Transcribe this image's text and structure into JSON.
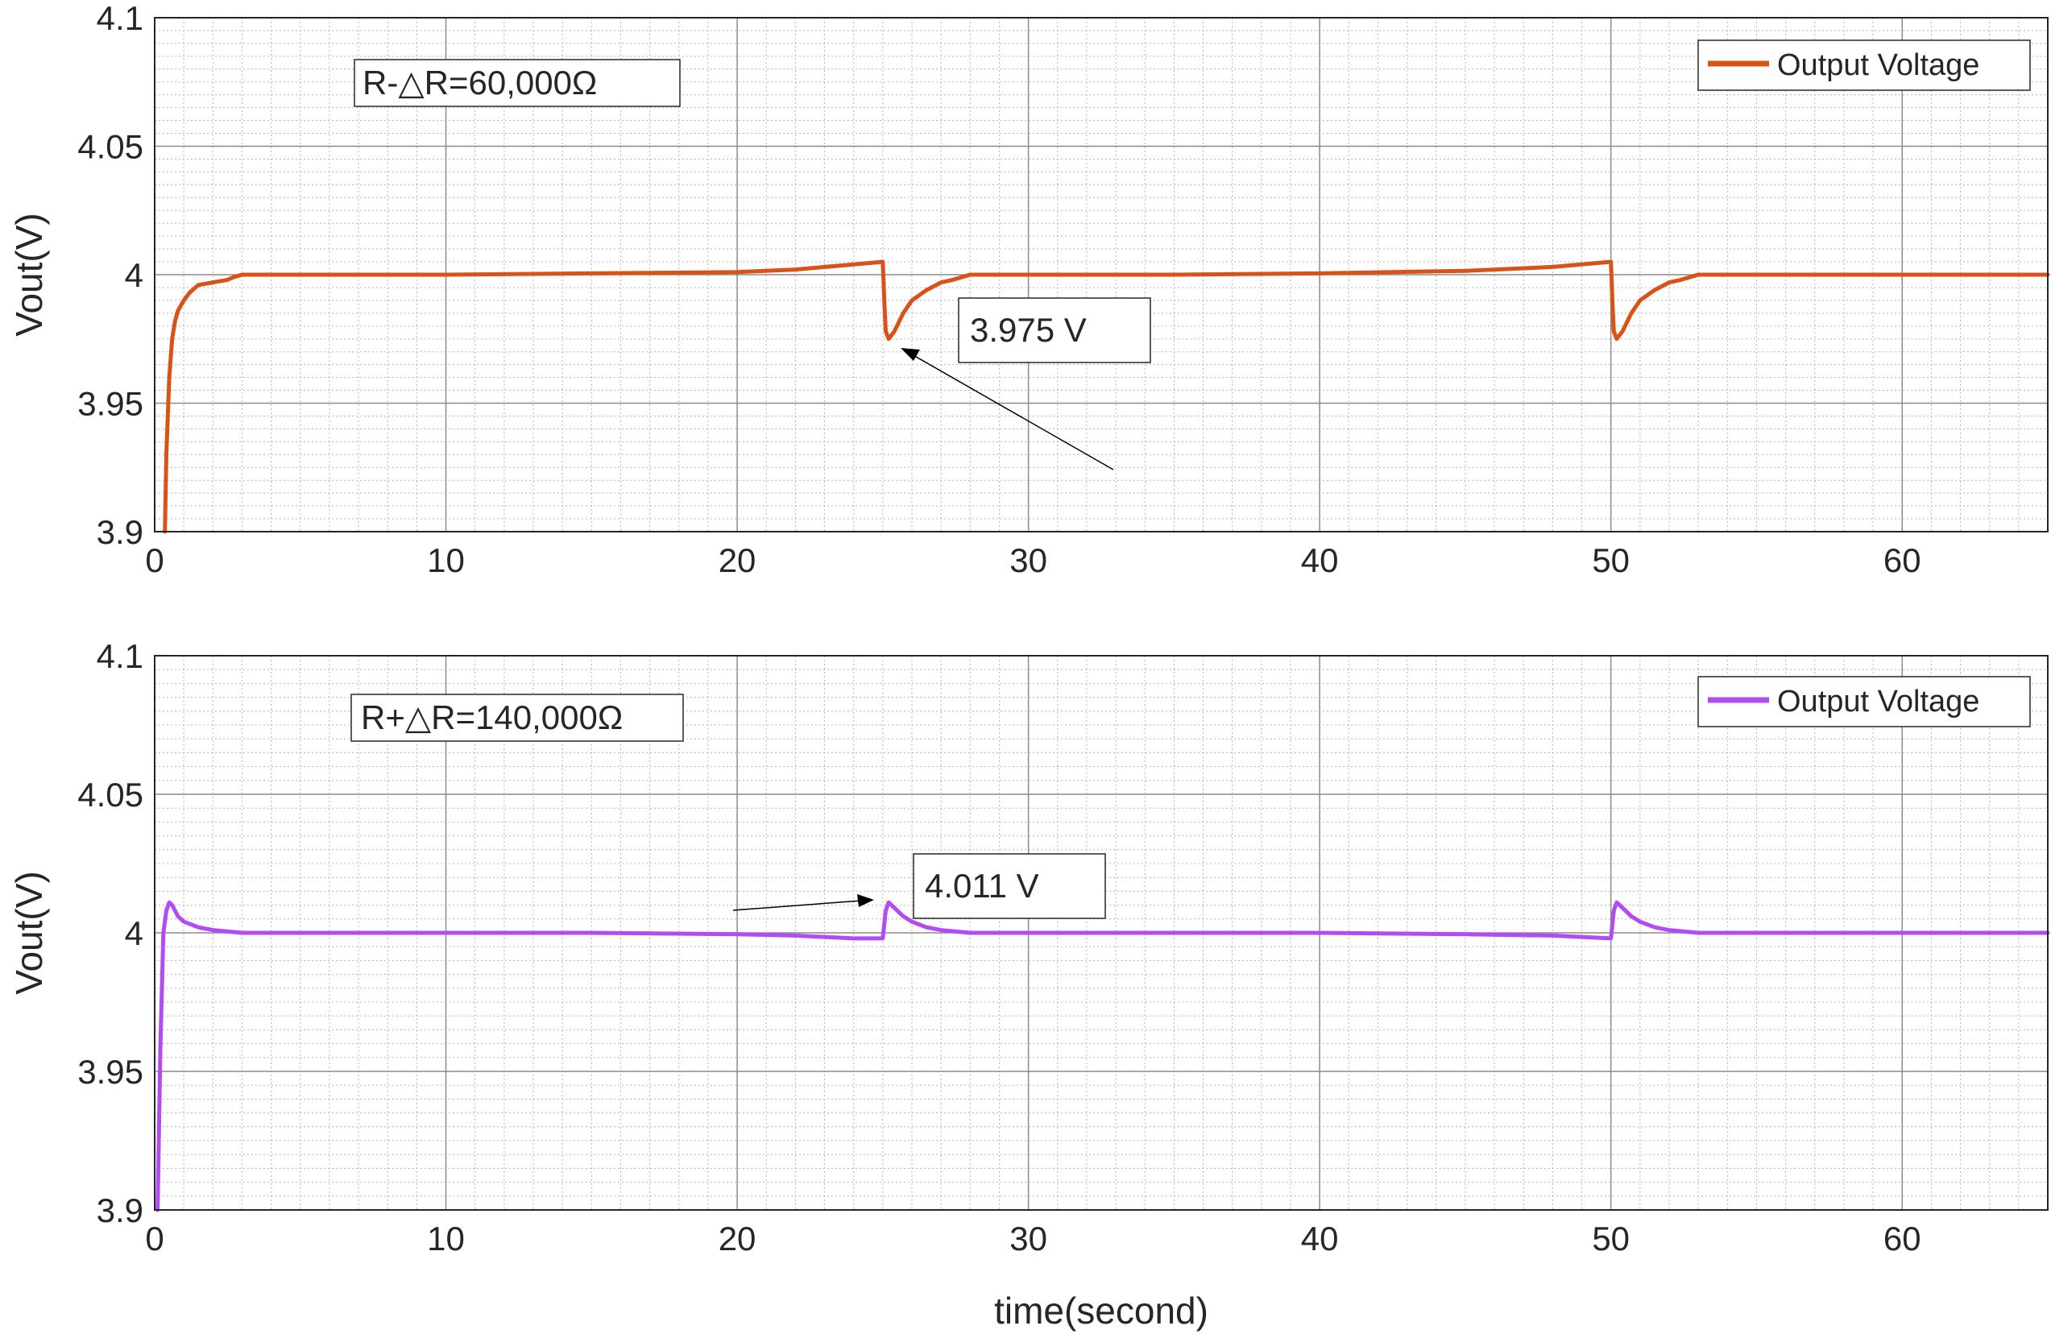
{
  "chart_data": [
    {
      "type": "line",
      "ylabel": "Vout(V)",
      "xlim": [
        0,
        65
      ],
      "ylim": [
        3.9,
        4.1
      ],
      "xticks": [
        "0",
        "10",
        "20",
        "30",
        "40",
        "50",
        "60"
      ],
      "yticks": [
        "3.9",
        "3.95",
        "4",
        "4.05",
        "4.1"
      ],
      "grid": "major and minor",
      "legend_position": "top-right",
      "legend": [
        "Output Voltage"
      ],
      "textbox": "R-△R=60,000Ω",
      "annotation": {
        "text": "3.975 V",
        "x": 25.1,
        "y": 3.975
      },
      "series": [
        {
          "name": "Output Voltage",
          "color": "#D95319",
          "x": [
            0.35,
            0.4,
            0.5,
            0.6,
            0.7,
            0.8,
            1.0,
            1.2,
            1.5,
            2.0,
            2.5,
            2.7,
            3.0,
            5,
            10,
            15,
            20,
            22,
            24,
            25.0,
            25.05,
            25.1,
            25.2,
            25.4,
            25.7,
            26.0,
            26.5,
            27.0,
            27.4,
            27.7,
            28.0,
            30,
            35,
            40,
            45,
            48,
            50.0,
            50.05,
            50.1,
            50.2,
            50.4,
            50.7,
            51.0,
            51.5,
            52.0,
            52.4,
            52.7,
            53.0,
            55,
            60,
            65
          ],
          "y": [
            3.9,
            3.93,
            3.96,
            3.975,
            3.982,
            3.986,
            3.99,
            3.993,
            3.996,
            3.997,
            3.998,
            3.999,
            4.0,
            4.0,
            4.0,
            4.0005,
            4.001,
            4.002,
            4.004,
            4.005,
            3.99,
            3.978,
            3.975,
            3.978,
            3.985,
            3.99,
            3.994,
            3.997,
            3.998,
            3.999,
            4.0,
            4.0,
            4.0,
            4.0005,
            4.0015,
            4.003,
            4.005,
            3.99,
            3.978,
            3.975,
            3.978,
            3.985,
            3.99,
            3.994,
            3.997,
            3.998,
            3.999,
            4.0,
            4.0,
            4.0,
            4.0
          ]
        }
      ]
    },
    {
      "type": "line",
      "ylabel": "Vout(V)",
      "xlabel": "time(second)",
      "xlim": [
        0,
        65
      ],
      "ylim": [
        3.9,
        4.1
      ],
      "xticks": [
        "0",
        "10",
        "20",
        "30",
        "40",
        "50",
        "60"
      ],
      "yticks": [
        "3.9",
        "3.95",
        "4",
        "4.05",
        "4.1"
      ],
      "grid": "major and minor",
      "legend_position": "top-right",
      "legend": [
        "Output Voltage"
      ],
      "textbox": "R+△R=140,000Ω",
      "annotation": {
        "text": "4.011 V",
        "x": 25.2,
        "y": 4.011
      },
      "series": [
        {
          "name": "Output Voltage",
          "color": "#B24BF3",
          "x": [
            0.1,
            0.2,
            0.3,
            0.4,
            0.5,
            0.6,
            0.8,
            1.0,
            1.5,
            2.0,
            3.0,
            5,
            10,
            15,
            20,
            22,
            24,
            25.0,
            25.1,
            25.2,
            25.4,
            25.7,
            26.0,
            26.5,
            27.0,
            28.0,
            30,
            35,
            40,
            45,
            48,
            50.0,
            50.1,
            50.2,
            50.4,
            50.7,
            51.0,
            51.5,
            52.0,
            53.0,
            55,
            60,
            65
          ],
          "y": [
            3.9,
            3.96,
            4.0,
            4.008,
            4.011,
            4.01,
            4.006,
            4.004,
            4.002,
            4.001,
            4.0,
            4.0,
            4.0,
            4.0,
            3.9995,
            3.999,
            3.998,
            3.998,
            4.008,
            4.011,
            4.009,
            4.006,
            4.004,
            4.002,
            4.001,
            4.0,
            4.0,
            4.0,
            4.0,
            3.9995,
            3.999,
            3.998,
            4.008,
            4.011,
            4.009,
            4.006,
            4.004,
            4.002,
            4.001,
            4.0,
            4.0,
            4.0,
            4.0
          ]
        }
      ]
    }
  ]
}
